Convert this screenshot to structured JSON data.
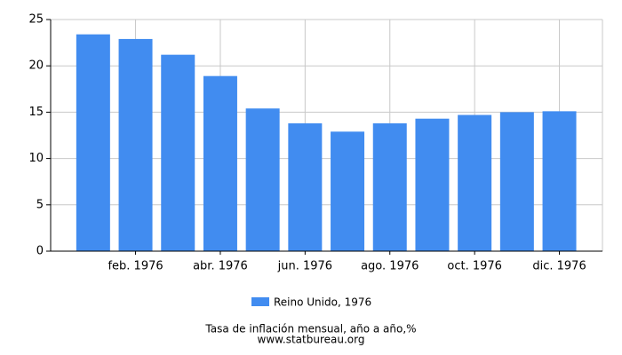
{
  "chart_data": {
    "type": "bar",
    "categories": [
      null,
      "feb. 1976",
      null,
      "abr. 1976",
      null,
      "jun. 1976",
      null,
      "ago. 1976",
      null,
      "oct. 1976",
      null,
      "dic. 1976"
    ],
    "series": [
      {
        "name": "Reino Unido, 1976",
        "color": "#418cf0",
        "values": [
          23.4,
          22.9,
          21.2,
          18.9,
          15.4,
          13.8,
          12.9,
          13.8,
          14.3,
          14.7,
          15.0,
          15.1
        ]
      }
    ],
    "ylim": [
      0,
      25
    ],
    "yticks": [
      0,
      5,
      10,
      15,
      20,
      25
    ],
    "grid": true,
    "footer": [
      "Tasa de inflación mensual, año a año,%",
      "www.statbureau.org"
    ]
  }
}
